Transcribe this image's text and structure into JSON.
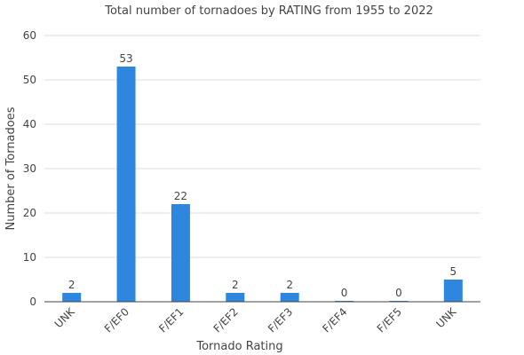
{
  "chart_data": {
    "type": "bar",
    "title": "Total number of tornadoes by RATING from 1955 to 2022",
    "xlabel": "Tornado Rating",
    "ylabel": "Number of Tornadoes",
    "categories": [
      "UNK",
      "F/EF0",
      "F/EF1",
      "F/EF2",
      "F/EF3",
      "F/EF4",
      "F/EF5",
      "UNK"
    ],
    "values": [
      2,
      53,
      22,
      2,
      2,
      0,
      0,
      5
    ],
    "ylim": [
      0,
      60
    ],
    "yticks": [
      0,
      10,
      20,
      30,
      40,
      50,
      60
    ],
    "grid": true,
    "legend": "none",
    "bar_color": "#2e86de"
  }
}
